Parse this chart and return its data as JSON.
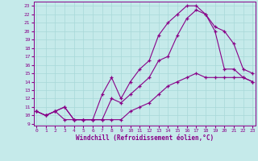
{
  "xlabel": "Windchill (Refroidissement éolien,°C)",
  "bg_color": "#c5eaea",
  "line_color": "#880088",
  "grid_color": "#a8d8d8",
  "x_ticks": [
    0,
    1,
    2,
    3,
    4,
    5,
    6,
    7,
    8,
    9,
    10,
    11,
    12,
    13,
    14,
    15,
    16,
    17,
    18,
    19,
    20,
    21,
    22,
    23
  ],
  "y_ticks": [
    9,
    10,
    11,
    12,
    13,
    14,
    15,
    16,
    17,
    18,
    19,
    20,
    21,
    22,
    23
  ],
  "ylim": [
    8.8,
    23.5
  ],
  "xlim": [
    -0.3,
    23.3
  ],
  "line1_x": [
    0,
    1,
    2,
    3,
    4,
    5,
    6,
    7,
    8,
    9,
    10,
    11,
    12,
    13,
    14,
    15,
    16,
    17,
    18,
    19,
    20,
    21,
    22,
    23
  ],
  "line1_y": [
    10.5,
    10.0,
    10.5,
    9.5,
    9.5,
    9.5,
    9.5,
    9.5,
    9.5,
    9.5,
    10.5,
    11.0,
    11.5,
    12.5,
    13.5,
    14.0,
    14.5,
    15.0,
    14.5,
    14.5,
    14.5,
    14.5,
    14.5,
    14.0
  ],
  "line2_x": [
    0,
    1,
    2,
    3,
    4,
    5,
    6,
    7,
    8,
    9,
    10,
    11,
    12,
    13,
    14,
    15,
    16,
    17,
    18,
    19,
    20,
    21,
    22,
    23
  ],
  "line2_y": [
    10.5,
    10.0,
    10.5,
    11.0,
    9.5,
    9.5,
    9.5,
    9.5,
    12.0,
    11.5,
    12.5,
    13.5,
    14.5,
    16.5,
    17.0,
    19.5,
    21.5,
    22.5,
    22.0,
    20.5,
    20.0,
    18.5,
    15.5,
    15.0
  ],
  "line3_x": [
    0,
    1,
    2,
    3,
    4,
    5,
    6,
    7,
    8,
    9,
    10,
    11,
    12,
    13,
    14,
    15,
    16,
    17,
    18,
    19,
    20,
    21,
    22,
    23
  ],
  "line3_y": [
    10.5,
    10.0,
    10.5,
    11.0,
    9.5,
    9.5,
    9.5,
    12.5,
    14.5,
    12.0,
    14.0,
    15.5,
    16.5,
    19.5,
    21.0,
    22.0,
    23.0,
    23.0,
    22.0,
    20.0,
    15.5,
    15.5,
    14.5,
    14.0
  ]
}
